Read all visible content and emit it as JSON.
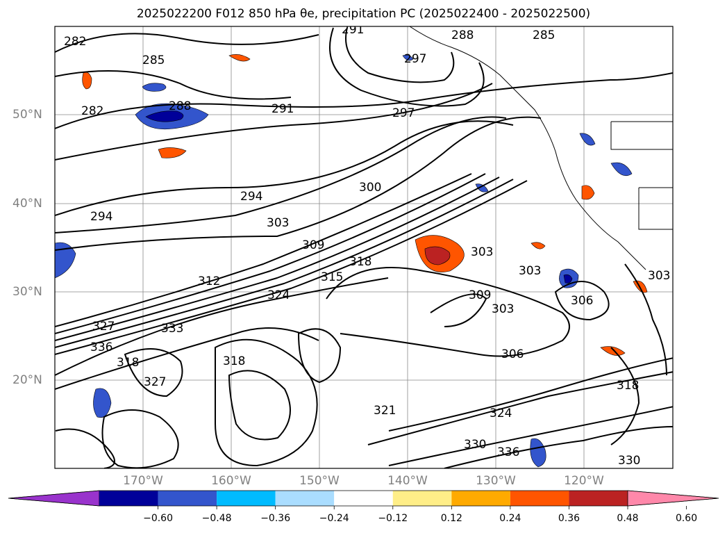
{
  "title": "2025022200 F012 850 hPa θe, precipitation PC (2025022400 - 2025022500)",
  "map": {
    "lat_labels": [
      "50°N",
      "40°N",
      "30°N",
      "20°N"
    ],
    "lon_labels": [
      "170°W",
      "160°W",
      "150°W",
      "140°W",
      "130°W",
      "120°W"
    ],
    "contour_labels": [
      "282",
      "285",
      "288",
      "291",
      "297",
      "285",
      "282",
      "288",
      "291",
      "297",
      "294",
      "300",
      "294",
      "303",
      "309",
      "318",
      "324",
      "312",
      "315",
      "327",
      "333",
      "336",
      "318",
      "327",
      "318",
      "321",
      "330",
      "303",
      "303",
      "303",
      "306",
      "306",
      "318",
      "324",
      "330",
      "336",
      "303",
      "309"
    ]
  },
  "colorbar": {
    "ticks": [
      "−0.60",
      "−0.48",
      "−0.36",
      "−0.24",
      "−0.12",
      "0.12",
      "0.24",
      "0.36",
      "0.48",
      "0.60"
    ],
    "colors": [
      "#9933cc",
      "#000099",
      "#3355cc",
      "#00bbff",
      "#aaddff",
      "#ffffff",
      "#ffee88",
      "#ffaa00",
      "#ff5500",
      "#bb2222",
      "#ff88aa"
    ]
  }
}
